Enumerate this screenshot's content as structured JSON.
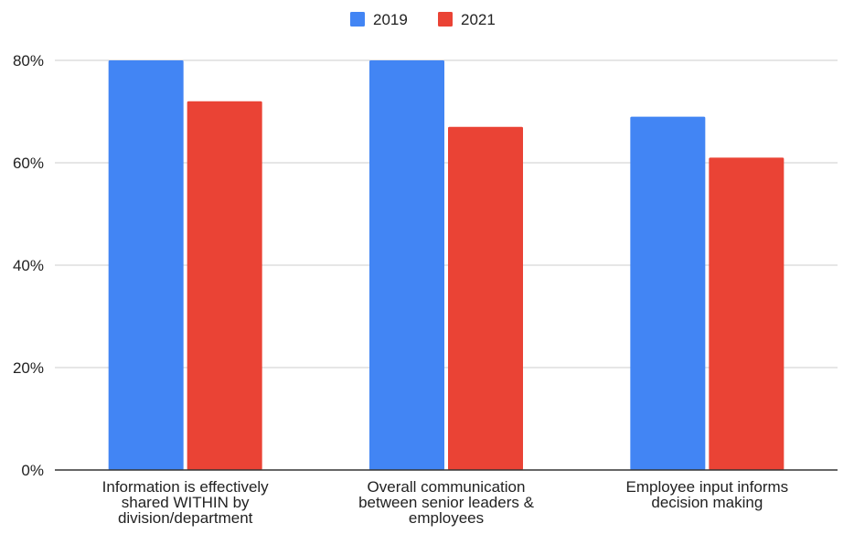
{
  "chart_data": {
    "type": "bar",
    "categories": [
      [
        "Information is effectively",
        "shared WITHIN by",
        "division/department"
      ],
      [
        "Overall communication",
        "between senior leaders &",
        "employees"
      ],
      [
        "Employee input informs",
        "decision making"
      ]
    ],
    "series": [
      {
        "name": "2019",
        "values": [
          80,
          80,
          69
        ],
        "color": "#4285f4"
      },
      {
        "name": "2021",
        "values": [
          72,
          67,
          61
        ],
        "color": "#ea4335"
      }
    ],
    "yticks": [
      0,
      20,
      40,
      60,
      80
    ],
    "ytick_labels": [
      "0%",
      "20%",
      "40%",
      "60%",
      "80%"
    ],
    "ylim": [
      0,
      80
    ],
    "grid": true,
    "legend_position": "top-center",
    "title": "",
    "xlabel": "",
    "ylabel": ""
  }
}
